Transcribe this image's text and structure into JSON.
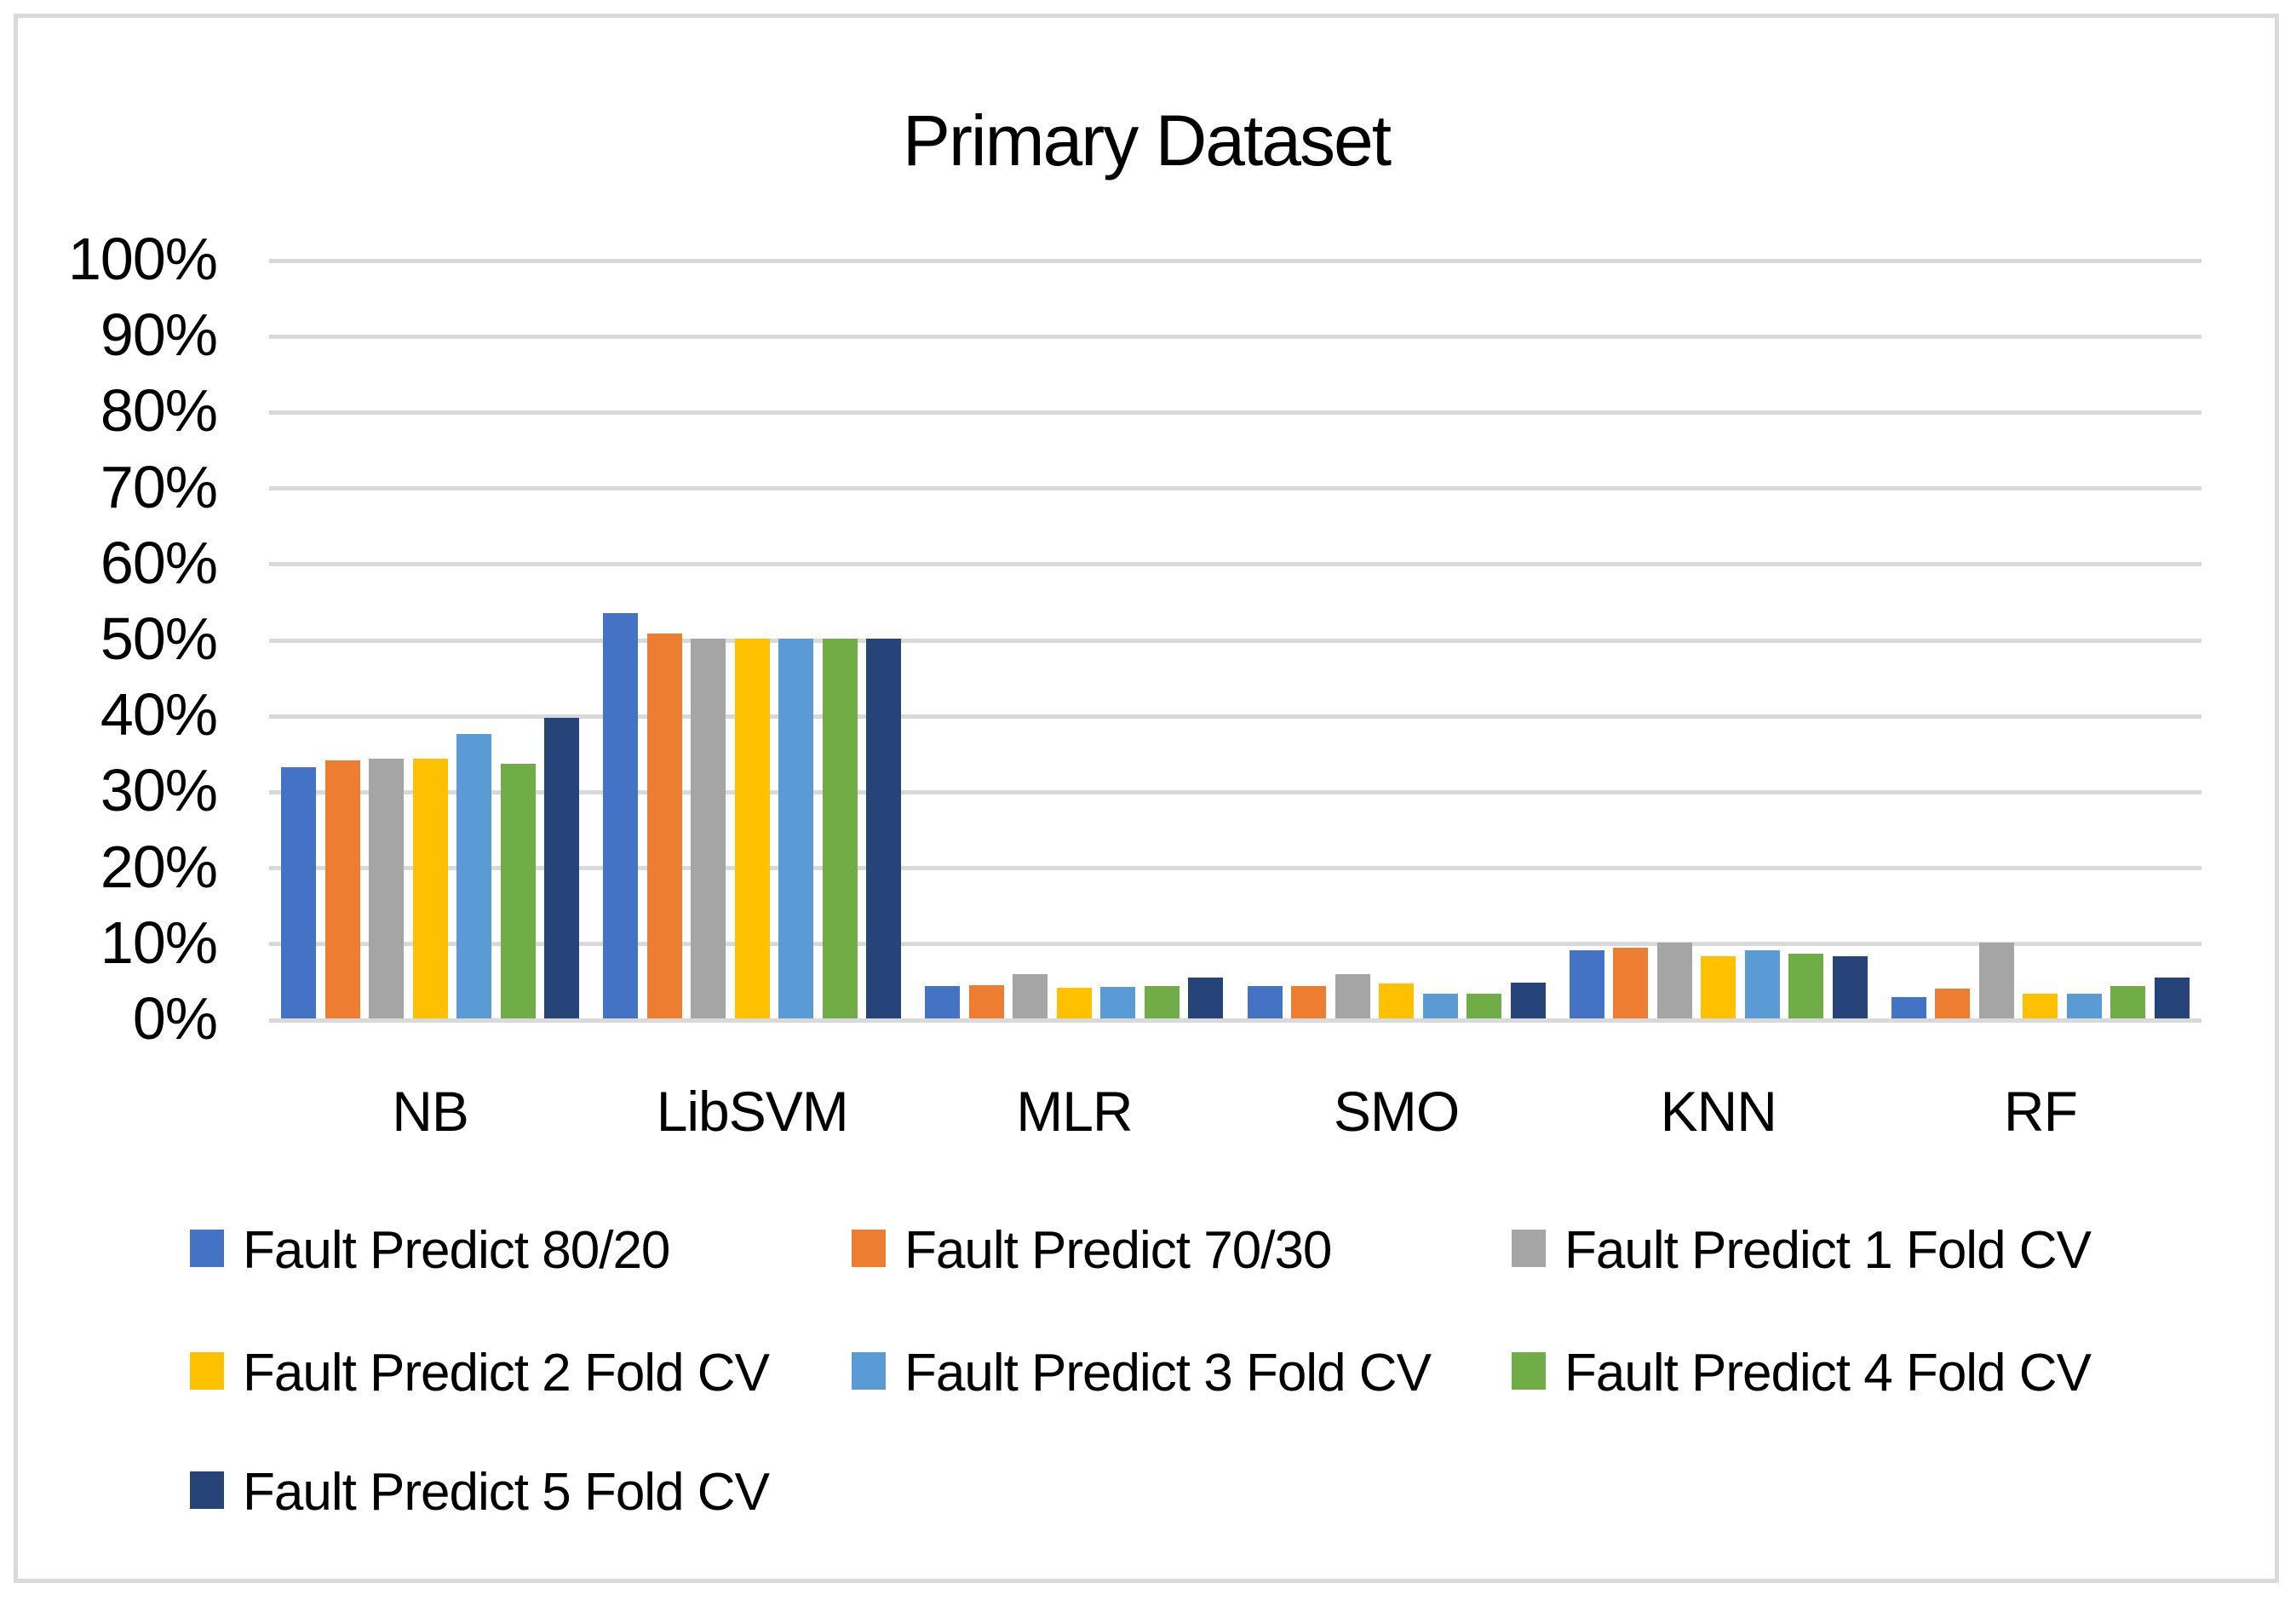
{
  "title": "Primary Dataset",
  "colors": {
    "gridline": "#D9D9D9",
    "frame_border": "#D9D9D9",
    "text": "#000000",
    "background": "#FFFFFF"
  },
  "chart_data": {
    "type": "bar",
    "title": "Primary Dataset",
    "xlabel": "",
    "ylabel": "",
    "ylim": [
      0,
      100
    ],
    "grid": true,
    "legend_position": "bottom",
    "y_ticks": [
      "100%",
      "90%",
      "80%",
      "70%",
      "60%",
      "50%",
      "40%",
      "30%",
      "20%",
      "10%",
      "0%"
    ],
    "categories": [
      "NB",
      "LibSVM",
      "MLR",
      "SMO",
      "KNN",
      "RF"
    ],
    "series": [
      {
        "name": "Fault Predict 80/20",
        "color": "#4472C4",
        "values": [
          33.1,
          53.4,
          4.3,
          4.3,
          9.0,
          2.8
        ]
      },
      {
        "name": "Fault Predict 70/30",
        "color": "#ED7D31",
        "values": [
          34.0,
          50.7,
          4.4,
          4.3,
          9.3,
          3.9
        ]
      },
      {
        "name": "Fault Predict 1 Fold CV",
        "color": "#A5A5A5",
        "values": [
          34.2,
          50.0,
          5.8,
          5.8,
          10.0,
          10.0
        ]
      },
      {
        "name": "Fault Predict 2 Fold CV",
        "color": "#FFC000",
        "values": [
          34.2,
          50.0,
          4.0,
          4.6,
          8.2,
          3.3
        ]
      },
      {
        "name": "Fault Predict 3 Fold CV",
        "color": "#5B9BD5",
        "values": [
          37.4,
          50.0,
          4.2,
          3.3,
          9.0,
          3.3
        ]
      },
      {
        "name": "Fault Predict 4 Fold CV",
        "color": "#70AD47",
        "values": [
          33.5,
          50.0,
          4.3,
          3.3,
          8.5,
          4.3
        ]
      },
      {
        "name": "Fault Predict 5 Fold CV",
        "color": "#264478",
        "values": [
          39.6,
          50.0,
          5.4,
          4.7,
          8.2,
          5.4
        ]
      }
    ]
  }
}
